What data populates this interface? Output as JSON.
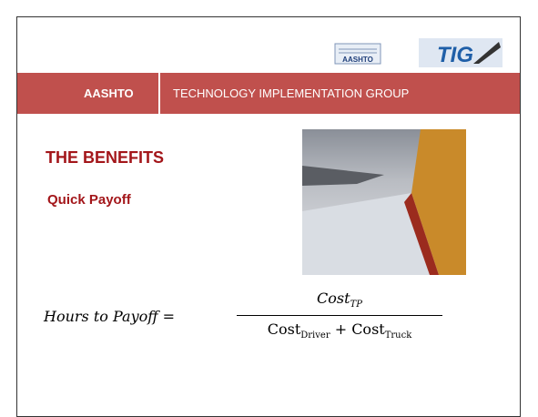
{
  "logo": {
    "left": "AASHTO",
    "right": "TIG"
  },
  "header": {
    "brand": "AASHTO",
    "title": "TECHNOLOGY IMPLEMENTATION GROUP"
  },
  "content": {
    "heading": "THE BENEFITS",
    "subheading": "Quick Payoff"
  },
  "formula": {
    "lhs": "Hours to Payoff",
    "equals": "=",
    "numerator": {
      "base": "Cost",
      "sub": "TP"
    },
    "denominator": [
      {
        "base": "Cost",
        "sub": "Driver"
      },
      {
        "base": "Cost",
        "sub": "Truck"
      }
    ],
    "plus": "+"
  }
}
